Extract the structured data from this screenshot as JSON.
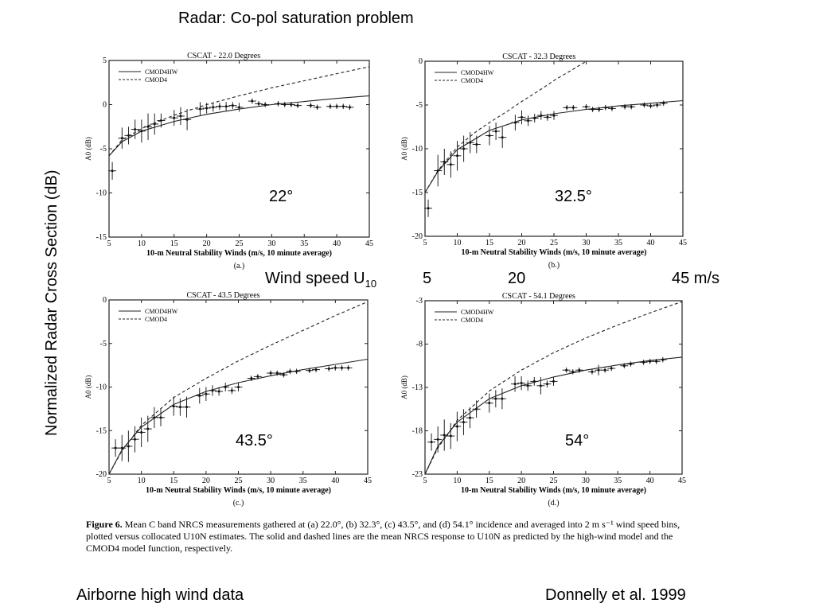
{
  "slide": {
    "title": "Radar: Co-pol saturation problem",
    "ylabel_main": "Normalized Radar Cross Section  (dB)",
    "wind_label": "Wind speed  U",
    "wind_sub": "10",
    "wind_ticks": [
      "5",
      "20",
      "45 m/s"
    ],
    "footer_left": "Airborne high wind data",
    "footer_right": "Donnelly et al. 1999",
    "angle_labels": [
      "22°",
      "32.5°",
      "43.5°",
      "54°"
    ]
  },
  "caption": {
    "fig_label": "Figure 6.",
    "text": "Mean C band NRCS measurements gathered at (a) 22.0°, (b) 32.3°, (c) 43.5°, and (d) 54.1° incidence and averaged into 2 m s⁻¹ wind speed bins, plotted versus collocated U10N estimates. The solid and dashed lines are the mean NRCS response to U10N as predicted by the high-wind model and the CMOD4 model function, respectively."
  },
  "chart_data": [
    {
      "type": "line",
      "title": "CSCAT - 22.0 Degrees",
      "xlabel": "10-m Neutral Stability Winds (m/s, 10 minute average)",
      "ylabel": "A0 (dB)",
      "panel_label": "(a.)",
      "xlim": [
        5,
        45
      ],
      "ylim": [
        -15,
        5
      ],
      "xticks": [
        5,
        10,
        15,
        20,
        25,
        30,
        35,
        40,
        45
      ],
      "yticks": [
        -15,
        -10,
        -5,
        0,
        5
      ],
      "legend": [
        "CMOD4HW",
        "CMOD4"
      ],
      "legend_position": "top-left",
      "series": [
        {
          "name": "CMOD4HW",
          "style": "solid",
          "x": [
            5,
            7,
            10,
            15,
            20,
            25,
            30,
            35,
            40,
            45
          ],
          "y": [
            -5.8,
            -4.2,
            -3.0,
            -1.9,
            -1.1,
            -0.5,
            0,
            0.35,
            0.7,
            1.0
          ]
        },
        {
          "name": "CMOD4",
          "style": "dashed",
          "x": [
            5,
            7,
            10,
            15,
            20,
            25,
            30,
            35,
            40,
            45
          ],
          "y": [
            -5.8,
            -4.0,
            -2.7,
            -1.2,
            0,
            1.0,
            1.9,
            2.7,
            3.5,
            4.3
          ]
        }
      ],
      "points": {
        "x": [
          5.5,
          7,
          8,
          9,
          10,
          11,
          12,
          13,
          15,
          16,
          17,
          19,
          20,
          21,
          22,
          23,
          24,
          25,
          27,
          28,
          29,
          31,
          32,
          33,
          34,
          36,
          37,
          39,
          40,
          41,
          42
        ],
        "y": [
          -7.5,
          -3.8,
          -3.5,
          -2.8,
          -3.0,
          -2.5,
          -2.2,
          -1.8,
          -1.5,
          -1.3,
          -1.7,
          -0.5,
          -0.4,
          -0.3,
          -0.2,
          -0.2,
          -0.1,
          -0.3,
          0.4,
          0.1,
          0.0,
          0.1,
          0.0,
          0.0,
          -0.1,
          -0.1,
          -0.3,
          -0.2,
          -0.2,
          -0.2,
          -0.3
        ],
        "err": [
          1.0,
          1.2,
          1.0,
          1.1,
          1.3,
          1.5,
          1.2,
          0.8,
          0.9,
          1.0,
          1.2,
          0.8,
          0.6,
          0.5,
          0.4,
          0.5,
          0.4,
          0.5,
          0.3,
          0.3,
          0.3,
          0.3,
          0.3,
          0.3,
          0.3,
          0.3,
          0.3,
          0.3,
          0.3,
          0.3,
          0.3
        ]
      }
    },
    {
      "type": "line",
      "title": "CSCAT - 32.3 Degrees",
      "xlabel": "10-m Neutral Stability Winds (m/s, 10 minute average)",
      "ylabel": "A0 (dB)",
      "panel_label": "(b.)",
      "xlim": [
        5,
        45
      ],
      "ylim": [
        -20,
        0
      ],
      "xticks": [
        5,
        10,
        15,
        20,
        25,
        30,
        35,
        40,
        45
      ],
      "yticks": [
        -20,
        -15,
        -10,
        -5,
        0
      ],
      "legend": [
        "CMOD4HW",
        "CMOD4"
      ],
      "legend_position": "top-left",
      "series": [
        {
          "name": "CMOD4HW",
          "style": "solid",
          "x": [
            5,
            7,
            10,
            15,
            20,
            25,
            30,
            35,
            40,
            45
          ],
          "y": [
            -15.0,
            -12.6,
            -10.1,
            -7.9,
            -6.7,
            -6.0,
            -5.5,
            -5.1,
            -4.8,
            -4.5
          ]
        },
        {
          "name": "CMOD4",
          "style": "dashed",
          "x": [
            5,
            7,
            10,
            13,
            15,
            18,
            20,
            23,
            25,
            28,
            30
          ],
          "y": [
            -15.0,
            -12.5,
            -9.8,
            -8.0,
            -7.0,
            -5.6,
            -4.6,
            -3.2,
            -2.2,
            -0.9,
            0
          ]
        }
      ],
      "points": {
        "x": [
          5.5,
          7,
          8,
          9,
          10,
          11,
          12,
          13,
          15,
          16,
          17,
          19,
          20,
          21,
          22,
          23,
          24,
          25,
          27,
          28,
          30,
          31,
          32,
          33,
          34,
          36,
          37,
          39,
          40,
          41,
          42
        ],
        "y": [
          -16.8,
          -12.5,
          -11.5,
          -11.8,
          -10.8,
          -10.0,
          -9.3,
          -9.5,
          -8.5,
          -8.0,
          -8.7,
          -7.0,
          -6.4,
          -6.8,
          -6.5,
          -6.2,
          -6.4,
          -6.2,
          -5.3,
          -5.3,
          -5.2,
          -5.5,
          -5.5,
          -5.3,
          -5.4,
          -5.2,
          -5.2,
          -5.0,
          -5.1,
          -5.0,
          -4.8
        ],
        "err": [
          1.0,
          1.8,
          1.5,
          1.5,
          1.7,
          1.5,
          1.2,
          1.0,
          1.1,
          1.0,
          1.2,
          0.9,
          0.8,
          0.6,
          0.5,
          0.5,
          0.4,
          0.5,
          0.3,
          0.3,
          0.3,
          0.3,
          0.3,
          0.3,
          0.3,
          0.3,
          0.3,
          0.3,
          0.3,
          0.3,
          0.3
        ]
      }
    },
    {
      "type": "line",
      "title": "CSCAT - 43.5 Degrees",
      "xlabel": "10-m Neutral Stability Winds (m/s, 10 minute average)",
      "ylabel": "A0 (dB)",
      "panel_label": "(c.)",
      "xlim": [
        5,
        45
      ],
      "ylim": [
        -20,
        0
      ],
      "xticks": [
        5,
        10,
        15,
        20,
        25,
        30,
        35,
        40,
        45
      ],
      "yticks": [
        -20,
        -15,
        -10,
        -5,
        0
      ],
      "legend": [
        "CMOD4HW",
        "CMOD4"
      ],
      "legend_position": "top-left",
      "series": [
        {
          "name": "CMOD4HW",
          "style": "solid",
          "x": [
            5,
            7,
            10,
            15,
            20,
            25,
            30,
            35,
            40,
            45
          ],
          "y": [
            -20.0,
            -17.2,
            -14.6,
            -12.0,
            -10.5,
            -9.5,
            -8.7,
            -8.0,
            -7.4,
            -6.8
          ]
        },
        {
          "name": "CMOD4",
          "style": "dashed",
          "x": [
            5,
            7,
            10,
            15,
            20,
            25,
            30,
            35,
            40,
            45
          ],
          "y": [
            -20.0,
            -17.3,
            -14.4,
            -11.2,
            -9.0,
            -7.0,
            -5.2,
            -3.5,
            -1.8,
            -0.2
          ]
        }
      ],
      "points": {
        "x": [
          6,
          7,
          8,
          9,
          10,
          11,
          12,
          13,
          15,
          16,
          17,
          19,
          20,
          21,
          22,
          23,
          24,
          25,
          27,
          28,
          30,
          31,
          32,
          33,
          34,
          36,
          37,
          39,
          40,
          41,
          42
        ],
        "y": [
          -17.0,
          -17.0,
          -16.8,
          -16.0,
          -15.2,
          -14.8,
          -13.5,
          -13.5,
          -12.2,
          -12.3,
          -12.3,
          -11.0,
          -10.8,
          -10.4,
          -10.5,
          -10.0,
          -10.4,
          -10.0,
          -9.0,
          -8.8,
          -8.4,
          -8.4,
          -8.6,
          -8.2,
          -8.2,
          -8.1,
          -8.0,
          -7.9,
          -7.8,
          -7.8,
          -7.8
        ],
        "err": [
          1.0,
          1.5,
          1.8,
          1.5,
          1.7,
          1.5,
          1.2,
          1.0,
          1.1,
          1.0,
          1.2,
          0.9,
          0.8,
          0.6,
          0.5,
          0.5,
          0.4,
          0.5,
          0.3,
          0.3,
          0.3,
          0.3,
          0.3,
          0.3,
          0.3,
          0.3,
          0.3,
          0.3,
          0.3,
          0.3,
          0.3
        ]
      }
    },
    {
      "type": "line",
      "title": "CSCAT - 54.1 Degrees",
      "xlabel": "10-m Neutral Stability Winds (m/s, 10 minute average)",
      "ylabel": "A0 (dB)",
      "panel_label": "(d.)",
      "xlim": [
        5,
        45
      ],
      "ylim": [
        -23,
        -3
      ],
      "xticks": [
        5,
        10,
        15,
        20,
        25,
        30,
        35,
        40,
        45
      ],
      "yticks": [
        -23,
        -18,
        -13,
        -8,
        -3
      ],
      "legend": [
        "CMOD4HW",
        "CMOD4"
      ],
      "legend_position": "top-left",
      "series": [
        {
          "name": "CMOD4HW",
          "style": "solid",
          "x": [
            5,
            7,
            10,
            15,
            20,
            25,
            30,
            35,
            40,
            45
          ],
          "y": [
            -23.0,
            -19.8,
            -17.0,
            -14.3,
            -12.8,
            -11.8,
            -11.0,
            -10.4,
            -9.9,
            -9.5
          ]
        },
        {
          "name": "CMOD4",
          "style": "dashed",
          "x": [
            5,
            7,
            10,
            15,
            20,
            25,
            30,
            35,
            40,
            45
          ],
          "y": [
            -23.0,
            -20.0,
            -16.8,
            -13.4,
            -11.0,
            -9.0,
            -7.3,
            -5.8,
            -4.4,
            -3.1
          ]
        }
      ],
      "points": {
        "x": [
          6,
          7,
          8,
          9,
          10,
          11,
          12,
          13,
          15,
          16,
          17,
          19,
          20,
          21,
          22,
          23,
          24,
          25,
          27,
          28,
          29,
          31,
          32,
          33,
          34,
          36,
          37,
          39,
          40,
          41,
          42
        ],
        "y": [
          -19.3,
          -19.0,
          -18.5,
          -18.6,
          -17.5,
          -17.0,
          -16.5,
          -15.5,
          -14.8,
          -14.3,
          -14.3,
          -12.6,
          -12.5,
          -12.8,
          -12.3,
          -12.8,
          -12.6,
          -12.3,
          -11.0,
          -11.2,
          -11.0,
          -11.2,
          -11.0,
          -11.0,
          -10.8,
          -10.5,
          -10.3,
          -10.1,
          -10.0,
          -10.0,
          -9.8
        ],
        "err": [
          1.0,
          1.5,
          1.8,
          1.5,
          1.7,
          1.5,
          1.2,
          1.0,
          1.1,
          1.0,
          1.2,
          0.9,
          0.8,
          0.6,
          0.5,
          1.0,
          0.4,
          0.5,
          0.3,
          0.3,
          0.3,
          0.3,
          0.6,
          0.3,
          0.3,
          0.3,
          0.3,
          0.3,
          0.3,
          0.3,
          0.3
        ]
      }
    }
  ]
}
